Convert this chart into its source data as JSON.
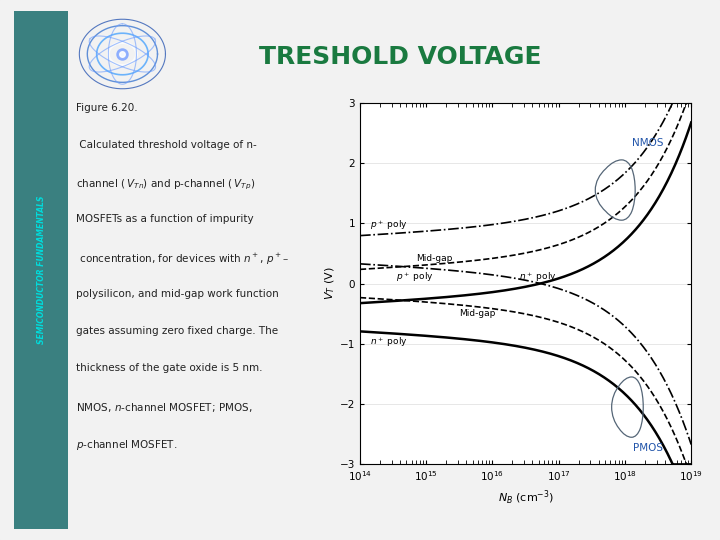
{
  "title": "TRESHOLD VOLTAGE",
  "title_color": "#1a7a40",
  "bg_outer": "#c8c8c8",
  "bg_inner": "#f2f2f2",
  "sidebar_color": "#3a8080",
  "sidebar_text_color": "#00dddd",
  "sidebar_text": "SEMICONDUCTOR FUNDAMENTALS",
  "img_bg": "#001855",
  "caption_color": "#222222",
  "caption_italic_color": "#1a1a1a",
  "nmos_label_color": "#2255aa",
  "pmos_label_color": "#2255aa",
  "ylim": [
    -3.0,
    3.0
  ],
  "xlim_log": [
    14,
    19
  ],
  "yticks": [
    -3.0,
    -2.0,
    -1.0,
    0.0,
    1.0,
    2.0,
    3.0
  ],
  "nmos_label": "NMOS",
  "pmos_label": "PMOS"
}
